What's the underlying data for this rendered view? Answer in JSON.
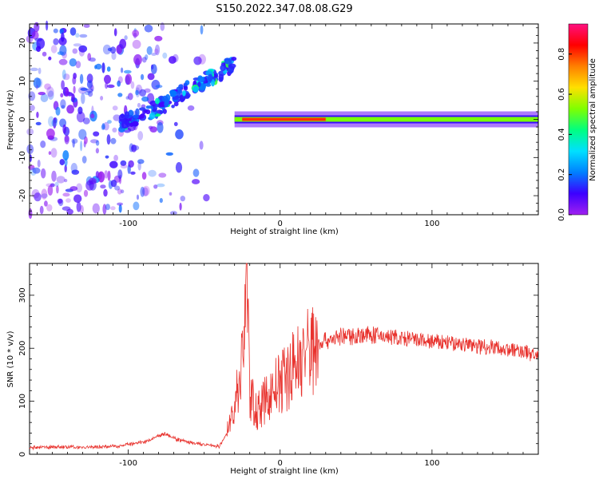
{
  "figure_title": "S150.2022.347.08.08.G29",
  "colors": {
    "snr_line": "#e8322d",
    "colormap": [
      "#a020f0",
      "#3c00ff",
      "#0080ff",
      "#00e0ff",
      "#00ff80",
      "#80ff00",
      "#ffe000",
      "#ff8000",
      "#ff0000",
      "#ff1080"
    ]
  },
  "chart_data": [
    {
      "type": "heatmap",
      "title": "",
      "xlabel": "Height of straight line (km)",
      "ylabel": "Frequency (Hz)",
      "xlim": [
        -165,
        170
      ],
      "ylim": [
        -25,
        25
      ],
      "xticks": [
        -100,
        0,
        100
      ],
      "yticks": [
        -20,
        -10,
        0,
        10,
        20
      ],
      "colorbar": {
        "label": "Normalized spectral amplitude",
        "range": [
          0,
          0.95
        ],
        "ticks": [
          0.0,
          0.2,
          0.4,
          0.6,
          0.8
        ]
      },
      "features": [
        {
          "name": "scattered noise",
          "x_range": [
            -165,
            -105
          ],
          "freq_range": [
            -25,
            25
          ],
          "amplitude": 0.1
        },
        {
          "name": "rising tone",
          "points": [
            [
              -105,
              -1
            ],
            [
              -80,
              3
            ],
            [
              -60,
              8
            ],
            [
              -40,
              12
            ],
            [
              -30,
              15
            ]
          ],
          "amplitude": 0.3
        },
        {
          "name": "carrier line",
          "x_range": [
            -30,
            170
          ],
          "freq": 0,
          "amplitude": 0.55,
          "peak": {
            "x": [
              -25,
              30
            ],
            "amplitude": 0.85
          }
        }
      ]
    },
    {
      "type": "line",
      "title": "",
      "xlabel": "Height of straight line (km)",
      "ylabel": "SNR (10 * v/v)",
      "xlim": [
        -165,
        170
      ],
      "ylim": [
        0,
        360
      ],
      "xticks": [
        -100,
        0,
        100
      ],
      "yticks": [
        0,
        100,
        200,
        300
      ],
      "series": [
        {
          "x": [
            -165,
            -150,
            -130,
            -110,
            -90,
            -80,
            -75,
            -70,
            -60,
            -50,
            -40,
            -35,
            -30,
            -25,
            -22,
            -20,
            -15,
            -10,
            -5,
            0,
            5,
            10,
            15,
            20,
            25,
            30,
            40,
            50,
            60,
            70,
            80,
            90,
            100,
            110,
            120,
            130,
            140,
            150,
            160,
            170
          ],
          "values": [
            12,
            14,
            13,
            15,
            22,
            35,
            40,
            30,
            22,
            18,
            15,
            40,
            90,
            170,
            360,
            110,
            80,
            100,
            120,
            135,
            150,
            170,
            185,
            200,
            210,
            215,
            222,
            224,
            225,
            222,
            218,
            215,
            212,
            210,
            208,
            205,
            202,
            198,
            193,
            188
          ]
        }
      ]
    }
  ]
}
